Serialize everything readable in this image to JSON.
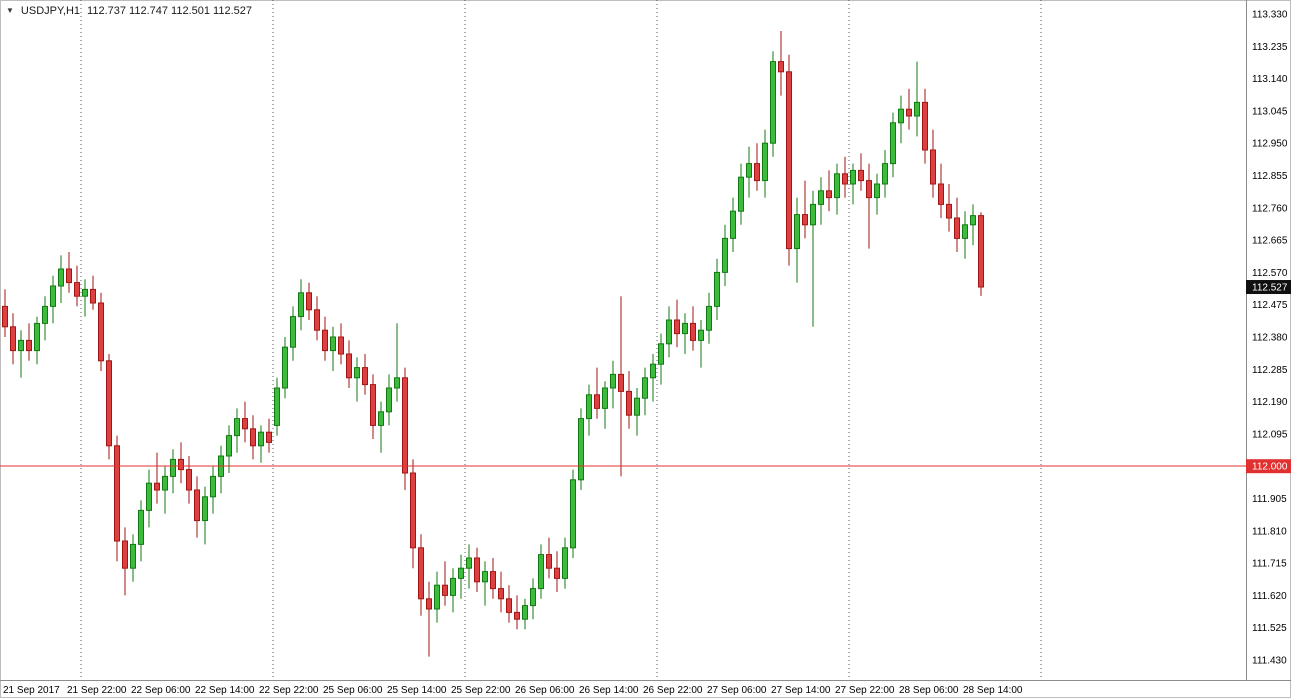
{
  "window": {
    "symbol_label": "USDJPY,H1",
    "quote": "112.737 112.747 112.501 112.527",
    "dropdown_marker": "▼"
  },
  "colors": {
    "background": "#FFFFFF",
    "bull_fill": "#3CBB3C",
    "bull_border": "#127A12",
    "bear_fill": "#DC4040",
    "bear_border": "#A31515",
    "grid": "#5A5A5A",
    "axis_line": "#8C8C8C",
    "hline": "#E03030",
    "hline_badge_bg": "#E03030",
    "current_badge_bg": "#101010",
    "badge_text": "#FFFFFF",
    "text": "#000000"
  },
  "chart_data": {
    "type": "candlestick",
    "symbol": "USDJPY",
    "timeframe": "H1",
    "title": "USDJPY,H1 112.737 112.747 112.501 112.527",
    "grid": "vertical-day-separators-only",
    "legend_position": "none",
    "price_axis": {
      "min": 111.43,
      "max": 113.33,
      "step": 0.095,
      "labels": [
        "113.330",
        "113.235",
        "113.140",
        "113.045",
        "112.950",
        "112.855",
        "112.760",
        "112.665",
        "112.570",
        "112.475",
        "112.380",
        "112.285",
        "112.190",
        "112.095",
        "112.000",
        "111.905",
        "111.810",
        "111.715",
        "111.620",
        "111.525",
        "111.430"
      ]
    },
    "time_axis": {
      "labels": [
        {
          "i": 1,
          "text": "21 Sep 2017"
        },
        {
          "i": 9,
          "text": "21 Sep 22:00"
        },
        {
          "i": 17,
          "text": "22 Sep 06:00"
        },
        {
          "i": 25,
          "text": "22 Sep 14:00"
        },
        {
          "i": 33,
          "text": "22 Sep 22:00"
        },
        {
          "i": 41,
          "text": "25 Sep 06:00"
        },
        {
          "i": 49,
          "text": "25 Sep 14:00"
        },
        {
          "i": 57,
          "text": "25 Sep 22:00"
        },
        {
          "i": 65,
          "text": "26 Sep 06:00"
        },
        {
          "i": 73,
          "text": "26 Sep 14:00"
        },
        {
          "i": 81,
          "text": "26 Sep 22:00"
        },
        {
          "i": 89,
          "text": "27 Sep 06:00"
        },
        {
          "i": 97,
          "text": "27 Sep 14:00"
        },
        {
          "i": 105,
          "text": "27 Sep 22:00"
        },
        {
          "i": 113,
          "text": "28 Sep 06:00"
        },
        {
          "i": 121,
          "text": "28 Sep 14:00"
        }
      ]
    },
    "day_separators": [
      11,
      35,
      59,
      83,
      107,
      131
    ],
    "hline": {
      "price": 112.0,
      "label": "112.000"
    },
    "current_price": {
      "value": 112.527,
      "label": "112.527"
    },
    "candles": [
      [
        "21 Sep 13:00",
        112.57,
        112.6,
        112.44,
        112.47
      ],
      [
        "21 Sep 14:00",
        112.47,
        112.52,
        112.38,
        112.41
      ],
      [
        "21 Sep 15:00",
        112.41,
        112.45,
        112.3,
        112.34
      ],
      [
        "21 Sep 16:00",
        112.34,
        112.4,
        112.26,
        112.37
      ],
      [
        "21 Sep 17:00",
        112.37,
        112.42,
        112.31,
        112.34
      ],
      [
        "21 Sep 18:00",
        112.34,
        112.44,
        112.3,
        112.42
      ],
      [
        "21 Sep 19:00",
        112.42,
        112.5,
        112.37,
        112.47
      ],
      [
        "21 Sep 20:00",
        112.47,
        112.56,
        112.42,
        112.53
      ],
      [
        "21 Sep 21:00",
        112.53,
        112.62,
        112.48,
        112.58
      ],
      [
        "21 Sep 22:00",
        112.58,
        112.63,
        112.51,
        112.54
      ],
      [
        "21 Sep 23:00",
        112.54,
        112.59,
        112.47,
        112.5
      ],
      [
        "22 Sep 00:00",
        112.5,
        112.55,
        112.44,
        112.52
      ],
      [
        "22 Sep 01:00",
        112.52,
        112.56,
        112.46,
        112.48
      ],
      [
        "22 Sep 02:00",
        112.48,
        112.51,
        112.28,
        112.31
      ],
      [
        "22 Sep 03:00",
        112.31,
        112.33,
        112.02,
        112.06
      ],
      [
        "22 Sep 04:00",
        112.06,
        112.09,
        111.72,
        111.78
      ],
      [
        "22 Sep 05:00",
        111.78,
        111.82,
        111.62,
        111.7
      ],
      [
        "22 Sep 06:00",
        111.7,
        111.8,
        111.66,
        111.77
      ],
      [
        "22 Sep 07:00",
        111.77,
        111.9,
        111.72,
        111.87
      ],
      [
        "22 Sep 08:00",
        111.87,
        111.99,
        111.82,
        111.95
      ],
      [
        "22 Sep 09:00",
        111.95,
        112.04,
        111.89,
        111.93
      ],
      [
        "22 Sep 10:00",
        111.93,
        112.0,
        111.86,
        111.97
      ],
      [
        "22 Sep 11:00",
        111.97,
        112.05,
        111.92,
        112.02
      ],
      [
        "22 Sep 12:00",
        112.02,
        112.07,
        111.95,
        111.99
      ],
      [
        "22 Sep 13:00",
        111.99,
        112.03,
        111.89,
        111.93
      ],
      [
        "22 Sep 14:00",
        111.93,
        111.97,
        111.79,
        111.84
      ],
      [
        "22 Sep 15:00",
        111.84,
        111.94,
        111.77,
        111.91
      ],
      [
        "22 Sep 16:00",
        111.91,
        112.0,
        111.86,
        111.97
      ],
      [
        "22 Sep 17:00",
        111.97,
        112.06,
        111.92,
        112.03
      ],
      [
        "22 Sep 18:00",
        112.03,
        112.12,
        111.98,
        112.09
      ],
      [
        "22 Sep 19:00",
        112.09,
        112.17,
        112.04,
        112.14
      ],
      [
        "22 Sep 20:00",
        112.14,
        112.19,
        112.07,
        112.11
      ],
      [
        "22 Sep 21:00",
        112.11,
        112.15,
        112.02,
        112.06
      ],
      [
        "22 Sep 22:00",
        112.06,
        112.12,
        112.01,
        112.1
      ],
      [
        "22 Sep 23:00",
        112.1,
        112.14,
        112.04,
        112.07
      ],
      [
        "25 Sep 00:00",
        112.12,
        112.26,
        112.09,
        112.23
      ],
      [
        "25 Sep 01:00",
        112.23,
        112.38,
        112.2,
        112.35
      ],
      [
        "25 Sep 02:00",
        112.35,
        112.47,
        112.31,
        112.44
      ],
      [
        "25 Sep 03:00",
        112.44,
        112.55,
        112.4,
        112.51
      ],
      [
        "25 Sep 04:00",
        112.51,
        112.54,
        112.43,
        112.46
      ],
      [
        "25 Sep 05:00",
        112.46,
        112.5,
        112.37,
        112.4
      ],
      [
        "25 Sep 06:00",
        112.4,
        112.44,
        112.31,
        112.34
      ],
      [
        "25 Sep 07:00",
        112.34,
        112.41,
        112.28,
        112.38
      ],
      [
        "25 Sep 08:00",
        112.38,
        112.42,
        112.3,
        112.33
      ],
      [
        "25 Sep 09:00",
        112.33,
        112.37,
        112.23,
        112.26
      ],
      [
        "25 Sep 10:00",
        112.26,
        112.32,
        112.19,
        112.29
      ],
      [
        "25 Sep 11:00",
        112.29,
        112.33,
        112.21,
        112.24
      ],
      [
        "25 Sep 12:00",
        112.24,
        112.27,
        112.08,
        112.12
      ],
      [
        "25 Sep 13:00",
        112.12,
        112.19,
        112.04,
        112.16
      ],
      [
        "25 Sep 14:00",
        112.16,
        112.27,
        112.12,
        112.23
      ],
      [
        "25 Sep 15:00",
        112.23,
        112.42,
        112.19,
        112.26
      ],
      [
        "25 Sep 16:00",
        112.26,
        112.29,
        111.93,
        111.98
      ],
      [
        "25 Sep 17:00",
        111.98,
        112.02,
        111.7,
        111.76
      ],
      [
        "25 Sep 18:00",
        111.76,
        111.8,
        111.56,
        111.61
      ],
      [
        "25 Sep 19:00",
        111.61,
        111.66,
        111.44,
        111.58
      ],
      [
        "25 Sep 20:00",
        111.58,
        111.69,
        111.54,
        111.65
      ],
      [
        "25 Sep 21:00",
        111.65,
        111.72,
        111.59,
        111.62
      ],
      [
        "25 Sep 22:00",
        111.62,
        111.7,
        111.57,
        111.67
      ],
      [
        "25 Sep 23:00",
        111.67,
        111.74,
        111.61,
        111.7
      ],
      [
        "26 Sep 00:00",
        111.7,
        111.77,
        111.64,
        111.73
      ],
      [
        "26 Sep 01:00",
        111.73,
        111.76,
        111.63,
        111.66
      ],
      [
        "26 Sep 02:00",
        111.66,
        111.72,
        111.59,
        111.69
      ],
      [
        "26 Sep 03:00",
        111.69,
        111.73,
        111.61,
        111.64
      ],
      [
        "26 Sep 04:00",
        111.64,
        111.69,
        111.57,
        111.61
      ],
      [
        "26 Sep 05:00",
        111.61,
        111.65,
        111.54,
        111.57
      ],
      [
        "26 Sep 06:00",
        111.57,
        111.62,
        111.52,
        111.55
      ],
      [
        "26 Sep 07:00",
        111.55,
        111.61,
        111.52,
        111.59
      ],
      [
        "26 Sep 08:00",
        111.59,
        111.67,
        111.55,
        111.64
      ],
      [
        "26 Sep 09:00",
        111.64,
        111.77,
        111.61,
        111.74
      ],
      [
        "26 Sep 10:00",
        111.74,
        111.79,
        111.67,
        111.7
      ],
      [
        "26 Sep 11:00",
        111.7,
        111.75,
        111.63,
        111.67
      ],
      [
        "26 Sep 12:00",
        111.67,
        111.79,
        111.64,
        111.76
      ],
      [
        "26 Sep 13:00",
        111.76,
        111.99,
        111.73,
        111.96
      ],
      [
        "26 Sep 14:00",
        111.96,
        112.17,
        111.93,
        112.14
      ],
      [
        "26 Sep 15:00",
        112.14,
        112.24,
        112.09,
        112.21
      ],
      [
        "26 Sep 16:00",
        112.21,
        112.29,
        112.14,
        112.17
      ],
      [
        "26 Sep 17:00",
        112.17,
        112.25,
        112.11,
        112.23
      ],
      [
        "26 Sep 18:00",
        112.23,
        112.31,
        112.17,
        112.27
      ],
      [
        "26 Sep 19:00",
        112.27,
        112.5,
        111.97,
        112.22
      ],
      [
        "26 Sep 20:00",
        112.22,
        112.28,
        112.11,
        112.15
      ],
      [
        "26 Sep 21:00",
        112.15,
        112.23,
        112.09,
        112.2
      ],
      [
        "26 Sep 22:00",
        112.2,
        112.29,
        112.15,
        112.26
      ],
      [
        "26 Sep 23:00",
        112.26,
        112.33,
        112.19,
        112.3
      ],
      [
        "27 Sep 00:00",
        112.3,
        112.39,
        112.24,
        112.36
      ],
      [
        "27 Sep 01:00",
        112.36,
        112.47,
        112.32,
        112.43
      ],
      [
        "27 Sep 02:00",
        112.43,
        112.49,
        112.35,
        112.39
      ],
      [
        "27 Sep 03:00",
        112.39,
        112.45,
        112.33,
        112.42
      ],
      [
        "27 Sep 04:00",
        112.42,
        112.47,
        112.34,
        112.37
      ],
      [
        "27 Sep 05:00",
        112.37,
        112.43,
        112.29,
        112.4
      ],
      [
        "27 Sep 06:00",
        112.4,
        112.51,
        112.36,
        112.47
      ],
      [
        "27 Sep 07:00",
        112.47,
        112.61,
        112.43,
        112.57
      ],
      [
        "27 Sep 08:00",
        112.57,
        112.71,
        112.53,
        112.67
      ],
      [
        "27 Sep 09:00",
        112.67,
        112.79,
        112.63,
        112.75
      ],
      [
        "27 Sep 10:00",
        112.75,
        112.89,
        112.71,
        112.85
      ],
      [
        "27 Sep 11:00",
        112.85,
        112.94,
        112.79,
        112.89
      ],
      [
        "27 Sep 12:00",
        112.89,
        112.95,
        112.81,
        112.84
      ],
      [
        "27 Sep 13:00",
        112.84,
        112.99,
        112.79,
        112.95
      ],
      [
        "27 Sep 14:00",
        112.95,
        113.22,
        112.91,
        113.19
      ],
      [
        "27 Sep 15:00",
        113.19,
        113.28,
        113.09,
        113.16
      ],
      [
        "27 Sep 16:00",
        113.16,
        113.21,
        112.59,
        112.64
      ],
      [
        "27 Sep 17:00",
        112.64,
        112.79,
        112.54,
        112.74
      ],
      [
        "27 Sep 18:00",
        112.74,
        112.84,
        112.67,
        112.71
      ],
      [
        "27 Sep 19:00",
        112.71,
        112.81,
        112.41,
        112.77
      ],
      [
        "27 Sep 20:00",
        112.77,
        112.85,
        112.71,
        112.81
      ],
      [
        "27 Sep 21:00",
        112.81,
        112.87,
        112.75,
        112.79
      ],
      [
        "27 Sep 22:00",
        112.79,
        112.89,
        112.74,
        112.86
      ],
      [
        "27 Sep 23:00",
        112.86,
        112.91,
        112.79,
        112.83
      ],
      [
        "28 Sep 00:00",
        112.83,
        112.89,
        112.77,
        112.87
      ],
      [
        "28 Sep 01:00",
        112.87,
        112.92,
        112.81,
        112.84
      ],
      [
        "28 Sep 02:00",
        112.84,
        112.89,
        112.64,
        112.79
      ],
      [
        "28 Sep 03:00",
        112.79,
        112.86,
        112.74,
        112.83
      ],
      [
        "28 Sep 04:00",
        112.83,
        112.93,
        112.79,
        112.89
      ],
      [
        "28 Sep 05:00",
        112.89,
        113.04,
        112.85,
        113.01
      ],
      [
        "28 Sep 06:00",
        113.01,
        113.09,
        112.95,
        113.05
      ],
      [
        "28 Sep 07:00",
        113.05,
        113.11,
        112.99,
        113.03
      ],
      [
        "28 Sep 08:00",
        113.03,
        113.19,
        112.97,
        113.07
      ],
      [
        "28 Sep 09:00",
        113.07,
        113.11,
        112.89,
        112.93
      ],
      [
        "28 Sep 10:00",
        112.93,
        112.99,
        112.79,
        112.83
      ],
      [
        "28 Sep 11:00",
        112.83,
        112.89,
        112.73,
        112.77
      ],
      [
        "28 Sep 12:00",
        112.77,
        112.83,
        112.69,
        112.73
      ],
      [
        "28 Sep 13:00",
        112.73,
        112.79,
        112.63,
        112.67
      ],
      [
        "28 Sep 14:00",
        112.67,
        112.75,
        112.61,
        112.71
      ],
      [
        "28 Sep 15:00",
        112.71,
        112.77,
        112.65,
        112.737
      ],
      [
        "28 Sep 16:00",
        112.737,
        112.747,
        112.501,
        112.527
      ]
    ]
  }
}
